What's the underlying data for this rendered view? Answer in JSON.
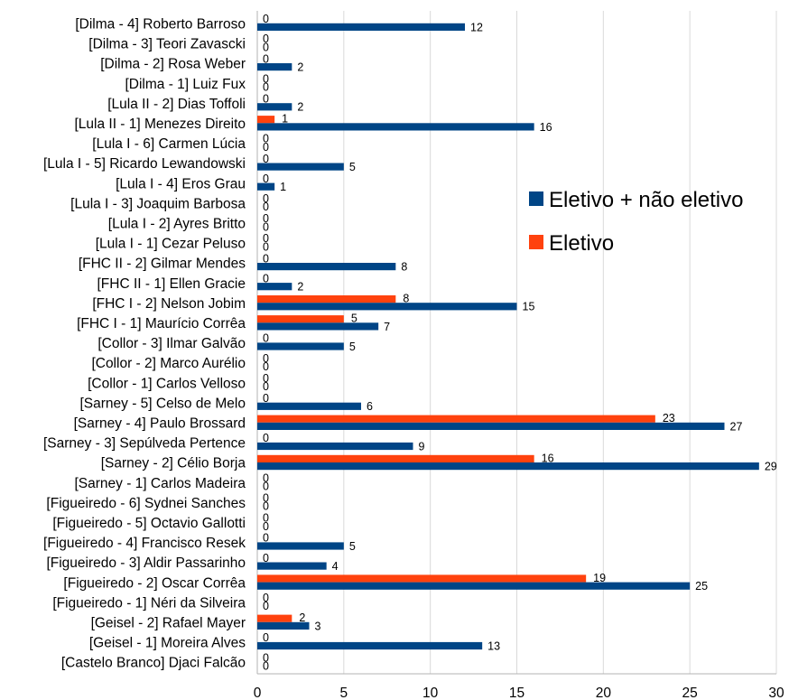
{
  "chart_data": {
    "type": "bar",
    "orientation": "horizontal",
    "title": "",
    "xlabel": "",
    "ylabel": "",
    "xlim": [
      0,
      30
    ],
    "xticks": [
      0,
      5,
      10,
      15,
      20,
      25,
      30
    ],
    "grid": "vertical",
    "legend_position": "right",
    "categories": [
      "[Dilma - 4] Roberto Barroso",
      "[Dilma - 3] Teori Zavascki",
      "[Dilma - 2] Rosa Weber",
      "[Dilma - 1] Luiz Fux",
      "[Lula II - 2] Dias Toffoli",
      "[Lula II - 1] Menezes Direito",
      "[Lula I - 6] Carmen Lúcia",
      "[Lula I - 5] Ricardo Lewandowski",
      "[Lula I - 4] Eros Grau",
      "[Lula I - 3] Joaquim Barbosa",
      "[Lula I - 2] Ayres Britto",
      "[Lula I - 1] Cezar Peluso",
      "[FHC II - 2] Gilmar Mendes",
      "[FHC II - 1] Ellen Gracie",
      "[FHC I - 2] Nelson Jobim",
      "[FHC I - 1] Maurício Corrêa",
      "[Collor - 3] Ilmar Galvão",
      "[Collor - 2] Marco Aurélio",
      "[Collor - 1] Carlos Velloso",
      "[Sarney - 5] Celso de Melo",
      "[Sarney - 4] Paulo Brossard",
      "[Sarney - 3] Sepúlveda Pertence",
      "[Sarney - 2] Célio Borja",
      "[Sarney - 1] Carlos Madeira",
      "[Figueiredo - 6] Sydnei Sanches",
      "[Figueiredo - 5] Octavio Gallotti",
      "[Figueiredo - 4] Francisco Resek",
      "[Figueiredo - 3] Aldir Passarinho",
      "[Figueiredo - 2] Oscar Corrêa",
      "[Figueiredo - 1] Néri da Silveira",
      "[Geisel - 2] Rafael Mayer",
      "[Geisel - 1] Moreira Alves",
      "[Castelo Branco] Djaci Falcão"
    ],
    "series": [
      {
        "name": "Eletivo",
        "color": "#ff420e",
        "values": [
          0,
          0,
          0,
          0,
          0,
          1,
          0,
          0,
          0,
          0,
          0,
          0,
          0,
          0,
          8,
          5,
          0,
          0,
          0,
          0,
          23,
          0,
          16,
          0,
          0,
          0,
          0,
          0,
          19,
          0,
          2,
          0,
          0
        ]
      },
      {
        "name": "Eletivo + não eletivo",
        "color": "#004586",
        "values": [
          12,
          0,
          2,
          0,
          2,
          16,
          0,
          5,
          1,
          0,
          0,
          0,
          8,
          2,
          15,
          7,
          5,
          0,
          0,
          6,
          27,
          9,
          29,
          0,
          0,
          0,
          5,
          4,
          25,
          0,
          3,
          13,
          0
        ]
      }
    ],
    "legend": [
      {
        "label": "Eletivo + não eletivo",
        "color": "#004586"
      },
      {
        "label": "Eletivo",
        "color": "#ff420e"
      }
    ]
  }
}
